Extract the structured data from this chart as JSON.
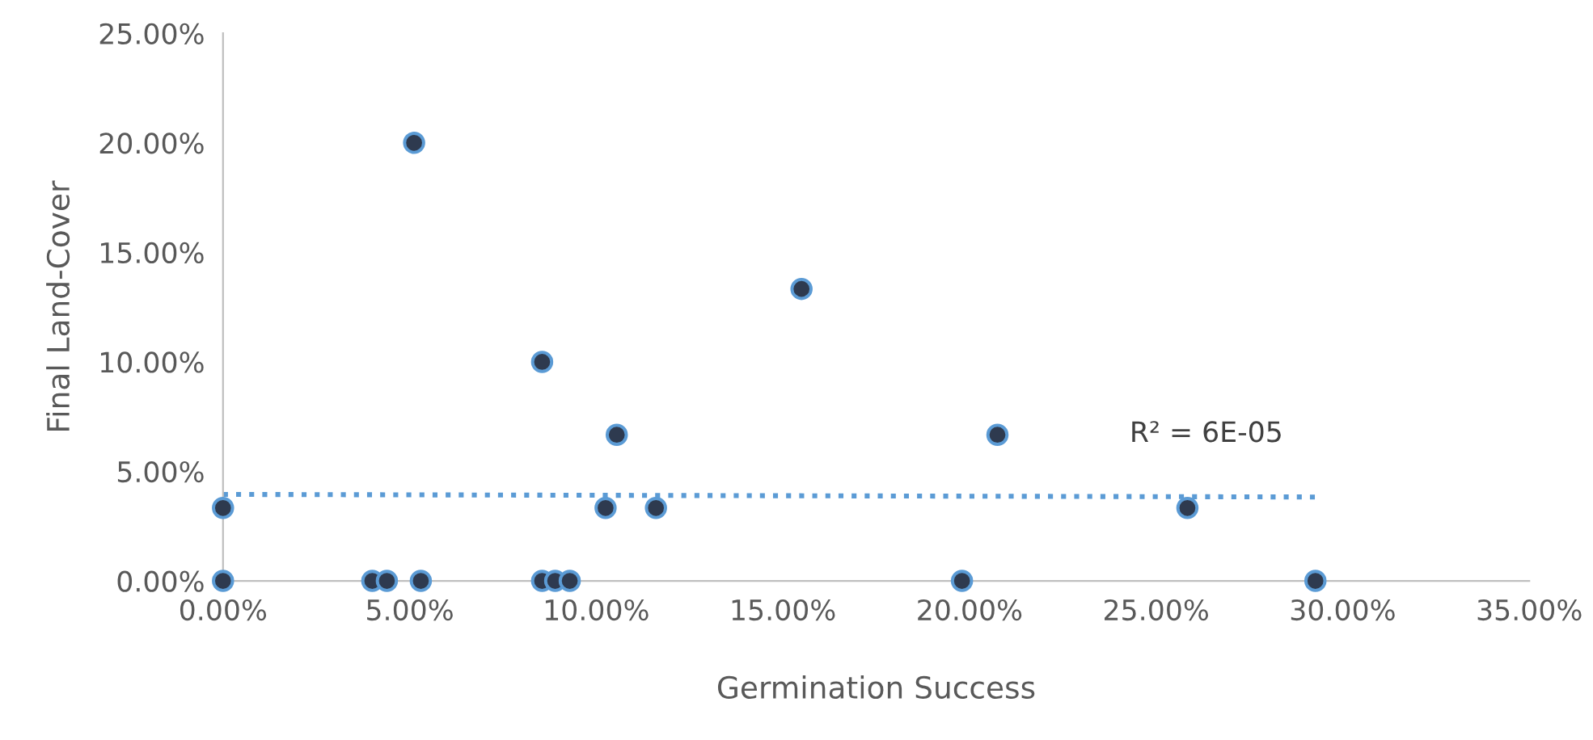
{
  "chart_data": {
    "type": "scatter",
    "xlabel": "Germination Success",
    "ylabel": "Final Land-Cover",
    "xlim": [
      0,
      35
    ],
    "ylim": [
      0,
      25
    ],
    "xticks": [
      {
        "value": 0,
        "label": "0.00%"
      },
      {
        "value": 5,
        "label": "5.00%"
      },
      {
        "value": 10,
        "label": "10.00%"
      },
      {
        "value": 15,
        "label": "15.00%"
      },
      {
        "value": 20,
        "label": "20.00%"
      },
      {
        "value": 25,
        "label": "25.00%"
      },
      {
        "value": 30,
        "label": "30.00%"
      },
      {
        "value": 35,
        "label": "35.00%"
      }
    ],
    "yticks": [
      {
        "value": 0,
        "label": "0.00%"
      },
      {
        "value": 5,
        "label": "5.00%"
      },
      {
        "value": 10,
        "label": "10.00%"
      },
      {
        "value": 15,
        "label": "15.00%"
      },
      {
        "value": 20,
        "label": "20.00%"
      },
      {
        "value": 25,
        "label": "25.00%"
      }
    ],
    "grid": false,
    "marker": "circle",
    "series": [
      {
        "type": "line",
        "color": "#5b9bd5",
        "line_style": "dotted",
        "marker": "none",
        "x": [
          0,
          29.27
        ],
        "values": [
          3.95,
          3.83
        ]
      },
      {
        "color": "#2e3a4f",
        "x": [
          0,
          0,
          5.12,
          4.0,
          4.39,
          5.3,
          8.55,
          8.55,
          8.9,
          9.29,
          10.25,
          10.55,
          11.6,
          15.5,
          19.8,
          20.75,
          25.84,
          29.27
        ],
        "values": [
          0,
          3.33,
          20,
          0,
          0,
          0,
          10,
          0,
          0,
          0,
          3.33,
          6.67,
          3.33,
          13.33,
          0,
          6.67,
          3.33,
          0
        ]
      }
    ],
    "annotations": [
      "R² = 6E-05"
    ]
  }
}
